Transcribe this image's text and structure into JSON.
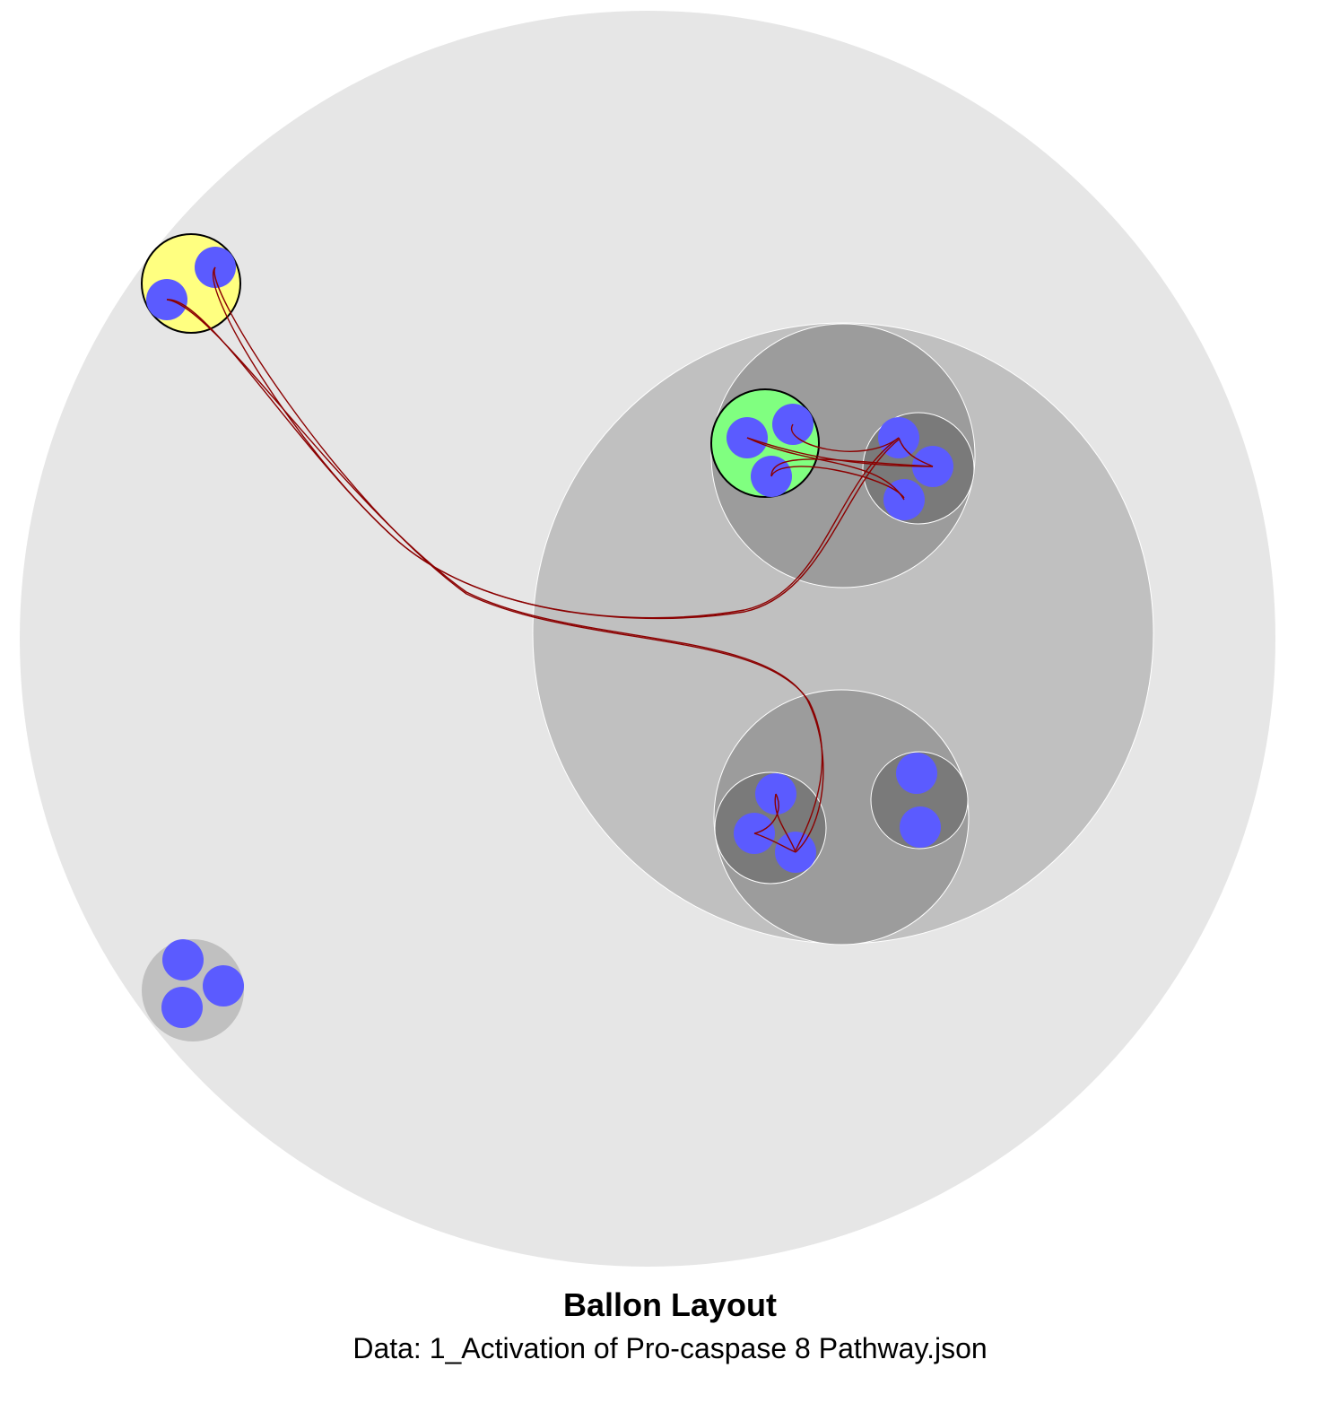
{
  "title": "Ballon Layout",
  "subtitle": "Data: 1_Activation of Pro-caspase 8 Pathway.json",
  "colors": {
    "level0": "#e6e6e6",
    "level1": "#c0c0c0",
    "level2": "#9c9c9c",
    "level3": "#7a7a7a",
    "leaf": "#5b5bff",
    "highlight_yellow": "#ffff80",
    "highlight_green": "#80ff80",
    "edge": "#8b0000"
  }
}
